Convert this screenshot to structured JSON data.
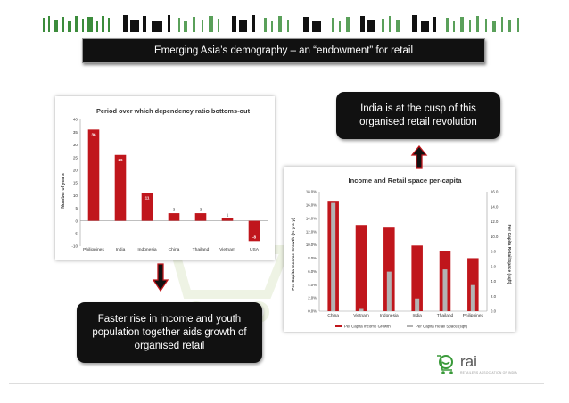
{
  "page_title": "Emerging Asia’s demography – an “endowment” for retail",
  "callouts": {
    "top_right": [
      "India is at the cusp of this",
      "organised retail revolution"
    ],
    "bottom_left": [
      "Faster rise in income and youth",
      "population together aids growth of",
      "organised retail"
    ]
  },
  "logo": {
    "text": "rai",
    "tagline": "RETAILERS ASSOCIATION OF INDIA"
  },
  "colors": {
    "bar_red": "#c0161c",
    "bar_gray": "#b3b3b3",
    "callout_bg": "#111111",
    "title_bg": "#111111"
  },
  "chart_data": [
    {
      "type": "bar",
      "title": "Period over which dependency ratio bottoms-out",
      "ylabel": "Number of years",
      "xlabel": "",
      "categories": [
        "Philippines",
        "India",
        "Indonesia",
        "China",
        "Thailand",
        "Vietnam",
        "USA"
      ],
      "values": [
        36,
        26,
        11,
        3,
        3,
        1,
        -8
      ],
      "ylim": [
        -10,
        40
      ],
      "yticks": [
        "40",
        "35",
        "30",
        "25",
        "20",
        "15",
        "10",
        "5",
        "0",
        "-5",
        "-10"
      ],
      "grid": false,
      "data_labels": true
    },
    {
      "type": "bar",
      "title": "Income and Retail space per-capita",
      "categories": [
        "China",
        "Vietnam",
        "Indonesia",
        "India",
        "Thailand",
        "Philippines"
      ],
      "series": [
        {
          "name": "Per Capita Income Growth",
          "axis": "left",
          "values": [
            16.5,
            13.0,
            12.6,
            9.9,
            9.0,
            8.0
          ]
        },
        {
          "name": "Per Capita Retail Space (sqft)",
          "axis": "right",
          "values": [
            14.5,
            0.3,
            5.3,
            1.7,
            5.6,
            3.5
          ]
        }
      ],
      "ylabel": "Per Capita Income Growth (% y-o-y)",
      "ylabel_right": "Per Capita Retail Space (sqft)",
      "ylim": [
        0,
        18
      ],
      "ylim_right": [
        0,
        16
      ],
      "yticks": [
        "18.0%",
        "16.0%",
        "14.0%",
        "12.0%",
        "10.0%",
        "8.0%",
        "6.0%",
        "4.0%",
        "2.0%",
        "0.0%"
      ],
      "yticks_right": [
        "16.0",
        "14.0",
        "12.0",
        "10.0",
        "8.0",
        "6.0",
        "4.0",
        "2.0",
        "0.0"
      ],
      "legend": "bottom",
      "grid": false
    }
  ]
}
